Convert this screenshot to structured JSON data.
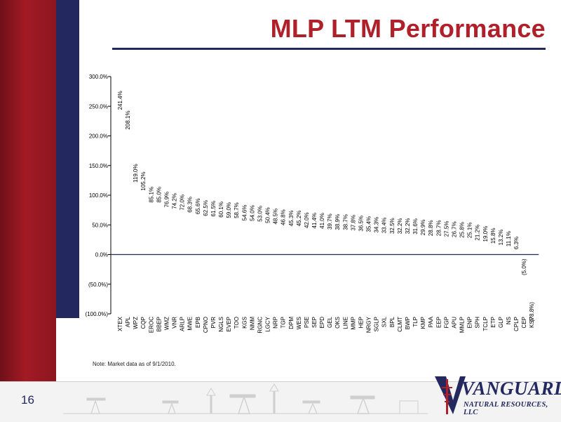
{
  "slide": {
    "title": "MLP LTM Performance",
    "note": "Note: Market data as of 9/1/2010.",
    "page_number": "16"
  },
  "logo": {
    "name": "VANGUARD",
    "subtitle": "NATURAL RESOURCES, LLC"
  },
  "colors": {
    "brand_red": "#b0202a",
    "brand_navy": "#23285e",
    "zero_line": "#23285e",
    "axis": "#000000"
  },
  "chart_data": {
    "type": "bar",
    "title": "",
    "xlabel": "",
    "ylabel": "",
    "ylim": [
      -100,
      300
    ],
    "yticks": [
      -100,
      -50,
      0,
      50,
      100,
      150,
      200,
      250,
      300
    ],
    "ytick_labels": [
      "(100.0%)",
      "(50.0%)",
      "0.0%",
      "50.0%",
      "100.0%",
      "150.0%",
      "200.0%",
      "250.0%",
      "300.0%"
    ],
    "grid": false,
    "legend": "none",
    "bars_visible": false,
    "categories": [
      "XTEX",
      "APL",
      "WPZ",
      "CQP",
      "EROC",
      "BBEP",
      "WMZ",
      "VNR",
      "ARLP",
      "MWE",
      "EPB",
      "CPNO",
      "PVR",
      "NGLS",
      "EVEP",
      "TOO",
      "KGS",
      "NMM",
      "RGNC",
      "LGCY",
      "NRP",
      "TGP",
      "DPM",
      "WES",
      "PSE",
      "SEP",
      "EPD",
      "GEL",
      "OKS",
      "LINE",
      "MMP",
      "HEP",
      "NRGY",
      "SGLP",
      "SXL",
      "BPL",
      "CLMT",
      "BWP",
      "TLP",
      "KMP",
      "PAA",
      "EEP",
      "FGP",
      "APU",
      "MMLP",
      "ENP",
      "SPH",
      "TCLP",
      "ETP",
      "GLP",
      "NS",
      "CPLP",
      "CEP",
      "KSP"
    ],
    "values": [
      241.4,
      208.1,
      119.0,
      105.2,
      85.1,
      85.0,
      76.9,
      74.2,
      72.0,
      68.3,
      65.6,
      62.5,
      61.5,
      60.1,
      59.0,
      58.7,
      54.6,
      54.0,
      53.0,
      50.4,
      48.5,
      46.8,
      45.3,
      45.2,
      42.0,
      41.4,
      41.0,
      39.7,
      38.9,
      38.7,
      37.8,
      36.5,
      35.4,
      34.3,
      33.4,
      32.5,
      32.2,
      32.2,
      31.6,
      29.9,
      28.8,
      28.7,
      27.5,
      26.7,
      25.8,
      25.1,
      21.2,
      19.0,
      15.8,
      13.2,
      11.1,
      6.3,
      -5.0,
      -78.8
    ],
    "data_labels": [
      "241.4%",
      "208.1%",
      "119.0%",
      "105.2%",
      "85.1%",
      "85.0%",
      "76.9%",
      "74.2%",
      "72.0%",
      "68.3%",
      "65.6%",
      "62.5%",
      "61.5%",
      "60.1%",
      "59.0%",
      "58.7%",
      "54.6%",
      "54.0%",
      "53.0%",
      "50.4%",
      "48.5%",
      "46.8%",
      "45.3%",
      "45.2%",
      "42.0%",
      "41.4%",
      "41.0%",
      "39.7%",
      "38.9%",
      "38.7%",
      "37.8%",
      "36.5%",
      "35.4%",
      "34.3%",
      "33.4%",
      "32.5%",
      "32.2%",
      "32.2%",
      "31.6%",
      "29.9%",
      "28.8%",
      "28.7%",
      "27.5%",
      "26.7%",
      "25.8%",
      "25.1%",
      "21.2%",
      "19.0%",
      "15.8%",
      "13.2%",
      "11.1%",
      "6.3%",
      "(5.0%)",
      "(78.8%)"
    ]
  }
}
